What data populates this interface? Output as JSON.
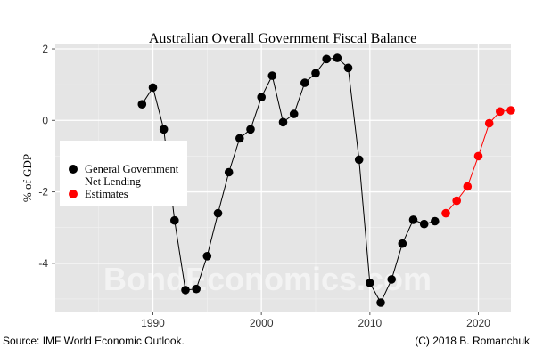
{
  "chart_data": {
    "type": "line",
    "title": "Australian Overall Government Fiscal Balance",
    "xlabel": "",
    "ylabel": "% of GDP",
    "xlim": [
      1981,
      2023
    ],
    "ylim": [
      -5.35,
      2.15
    ],
    "x_ticks": [
      1990,
      2000,
      2010,
      2020
    ],
    "y_ticks": [
      -4,
      -2,
      0,
      2
    ],
    "y_tick_labels": [
      "-4",
      "-2",
      "0",
      "2"
    ],
    "grid": true,
    "legend_position": "left",
    "series": [
      {
        "name": "General Government Net Lending",
        "color": "#000000",
        "points": [
          [
            1989,
            0.45
          ],
          [
            1990,
            0.92
          ],
          [
            1991,
            -0.25
          ],
          [
            1992,
            -2.8
          ],
          [
            1993,
            -4.75
          ],
          [
            1994,
            -4.72
          ],
          [
            1995,
            -3.8
          ],
          [
            1996,
            -2.6
          ],
          [
            1997,
            -1.45
          ],
          [
            1998,
            -0.5
          ],
          [
            1999,
            -0.25
          ],
          [
            2000,
            0.65
          ],
          [
            2001,
            1.25
          ],
          [
            2002,
            -0.05
          ],
          [
            2003,
            0.18
          ],
          [
            2004,
            1.05
          ],
          [
            2005,
            1.32
          ],
          [
            2006,
            1.72
          ],
          [
            2007,
            1.75
          ],
          [
            2008,
            1.47
          ],
          [
            2009,
            -1.1
          ],
          [
            2010,
            -4.55
          ],
          [
            2011,
            -5.1
          ],
          [
            2012,
            -4.45
          ],
          [
            2013,
            -3.45
          ],
          [
            2014,
            -2.78
          ],
          [
            2015,
            -2.9
          ],
          [
            2016,
            -2.82
          ]
        ]
      },
      {
        "name": "Estimates",
        "color": "#ff0000",
        "points": [
          [
            2017,
            -2.6
          ],
          [
            2018,
            -2.25
          ],
          [
            2019,
            -1.85
          ],
          [
            2020,
            -1.0
          ],
          [
            2021,
            -0.08
          ],
          [
            2022,
            0.25
          ],
          [
            2023,
            0.28
          ]
        ]
      }
    ]
  },
  "legend": {
    "line1": "General Government",
    "line2": "Net Lending",
    "line3": "Estimates"
  },
  "watermark": "BondEconomics.com",
  "footer": {
    "source": "Source: IMF World Economic Outlook.",
    "copyright": "(C) 2018 B. Romanchuk"
  }
}
